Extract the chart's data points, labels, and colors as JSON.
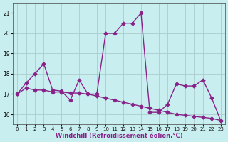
{
  "line1_x": [
    0,
    1,
    2,
    3,
    4,
    5,
    6,
    7,
    8,
    9,
    10,
    11,
    12,
    13,
    14,
    15,
    16,
    17,
    18,
    19,
    20,
    21,
    22,
    23
  ],
  "line1_y": [
    17.0,
    17.55,
    18.0,
    18.5,
    17.2,
    17.15,
    16.7,
    17.7,
    17.0,
    17.0,
    20.0,
    20.0,
    20.5,
    20.5,
    21.0,
    16.1,
    16.1,
    16.5,
    17.5,
    17.4,
    17.4,
    17.7,
    16.8,
    15.7
  ],
  "line2_x": [
    0,
    1,
    2,
    3,
    4,
    5,
    6,
    7,
    8,
    9,
    10,
    11,
    12,
    13,
    14,
    15,
    16,
    17,
    18,
    19,
    20,
    21,
    22,
    23
  ],
  "line2_y": [
    17.0,
    17.3,
    17.2,
    17.2,
    17.1,
    17.1,
    17.05,
    17.05,
    17.0,
    16.9,
    16.8,
    16.7,
    16.6,
    16.5,
    16.4,
    16.3,
    16.2,
    16.1,
    16.0,
    15.95,
    15.9,
    15.85,
    15.8,
    15.7
  ],
  "line_color": "#882288",
  "bg_color": "#c8eef0",
  "grid_color": "#aacccc",
  "xlabel": "Windchill (Refroidissement éolien,°C)",
  "xlim": [
    -0.5,
    23.5
  ],
  "ylim": [
    15.5,
    21.5
  ],
  "yticks": [
    16,
    17,
    18,
    19,
    20,
    21
  ],
  "xticks": [
    0,
    1,
    2,
    3,
    4,
    5,
    6,
    7,
    8,
    9,
    10,
    11,
    12,
    13,
    14,
    15,
    16,
    17,
    18,
    19,
    20,
    21,
    22,
    23
  ],
  "marker": "D",
  "markersize": 2.5,
  "linewidth": 1.0,
  "fig_width": 3.2,
  "fig_height": 2.0,
  "dpi": 100
}
